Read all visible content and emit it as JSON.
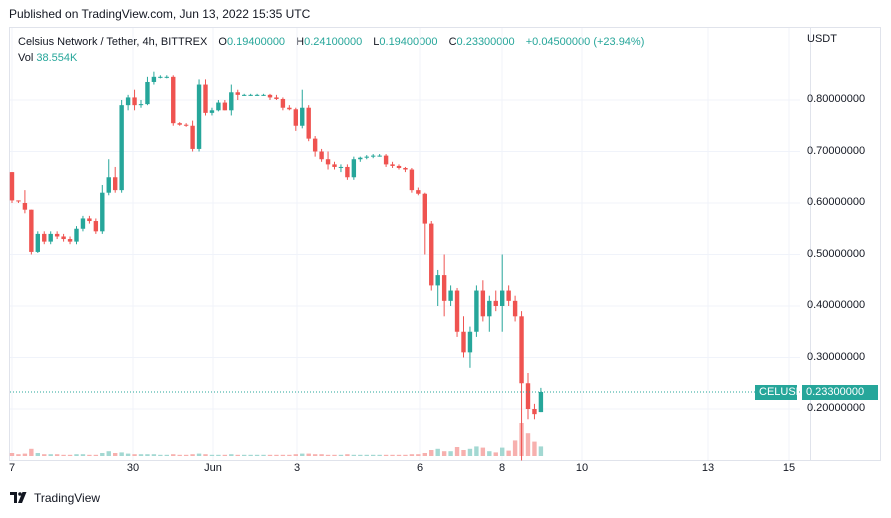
{
  "published": "Published on TradingView.com, Jun 13, 2022 15:35 UTC",
  "header": {
    "symbol": "Celsius Network / Tether, 4h, BITTREX",
    "o_label": "O",
    "o_value": "0.19400000",
    "h_label": "H",
    "h_value": "0.24100000",
    "l_label": "L",
    "l_value": "0.19400000",
    "c_label": "C",
    "c_value": "0.23300000",
    "change": "+0.04500000 (+23.94%)",
    "vol_label": "Vol",
    "vol_value": "38.554K"
  },
  "price_axis": {
    "currency": "USDT",
    "ticks": [
      "0.80000000",
      "0.70000000",
      "0.60000000",
      "0.50000000",
      "0.40000000",
      "0.30000000",
      "0.20000000"
    ],
    "tick_values": [
      0.8,
      0.7,
      0.6,
      0.5,
      0.4,
      0.3,
      0.2
    ]
  },
  "time_axis": {
    "ticks": [
      "7",
      "30",
      "Jun",
      "3",
      "6",
      "8",
      "10",
      "13",
      "15"
    ]
  },
  "current_price": {
    "symbol": "CELUSDT",
    "value": "0.23300000"
  },
  "branding": {
    "logo_text": "TradingView"
  },
  "colors": {
    "up": "#26a69a",
    "down": "#ef5350",
    "up_vol": "#a3d8d2",
    "down_vol": "#f7b0ae",
    "grid": "#f0f3fa"
  },
  "chart_data": {
    "type": "candlestick",
    "interval": "4h",
    "ylim": [
      0.1,
      0.9
    ],
    "candles": [
      {
        "o": 0.66,
        "h": 0.66,
        "l": 0.6,
        "c": 0.605
      },
      {
        "o": 0.605,
        "h": 0.605,
        "l": 0.6,
        "c": 0.603
      },
      {
        "o": 0.6,
        "h": 0.625,
        "l": 0.58,
        "c": 0.587
      },
      {
        "o": 0.587,
        "h": 0.587,
        "l": 0.5,
        "c": 0.505
      },
      {
        "o": 0.505,
        "h": 0.545,
        "l": 0.503,
        "c": 0.54
      },
      {
        "o": 0.54,
        "h": 0.545,
        "l": 0.52,
        "c": 0.525
      },
      {
        "o": 0.525,
        "h": 0.545,
        "l": 0.52,
        "c": 0.54
      },
      {
        "o": 0.54,
        "h": 0.545,
        "l": 0.53,
        "c": 0.535
      },
      {
        "o": 0.535,
        "h": 0.54,
        "l": 0.525,
        "c": 0.53
      },
      {
        "o": 0.53,
        "h": 0.535,
        "l": 0.52,
        "c": 0.525
      },
      {
        "o": 0.525,
        "h": 0.555,
        "l": 0.52,
        "c": 0.55
      },
      {
        "o": 0.55,
        "h": 0.575,
        "l": 0.545,
        "c": 0.57
      },
      {
        "o": 0.57,
        "h": 0.575,
        "l": 0.56,
        "c": 0.565
      },
      {
        "o": 0.565,
        "h": 0.57,
        "l": 0.54,
        "c": 0.545
      },
      {
        "o": 0.545,
        "h": 0.635,
        "l": 0.54,
        "c": 0.62
      },
      {
        "o": 0.62,
        "h": 0.685,
        "l": 0.615,
        "c": 0.65
      },
      {
        "o": 0.65,
        "h": 0.67,
        "l": 0.62,
        "c": 0.625
      },
      {
        "o": 0.625,
        "h": 0.8,
        "l": 0.62,
        "c": 0.79
      },
      {
        "o": 0.79,
        "h": 0.81,
        "l": 0.78,
        "c": 0.805
      },
      {
        "o": 0.805,
        "h": 0.82,
        "l": 0.78,
        "c": 0.79
      },
      {
        "o": 0.79,
        "h": 0.8,
        "l": 0.785,
        "c": 0.792
      },
      {
        "o": 0.792,
        "h": 0.845,
        "l": 0.79,
        "c": 0.835
      },
      {
        "o": 0.835,
        "h": 0.855,
        "l": 0.83,
        "c": 0.845
      },
      {
        "o": 0.845,
        "h": 0.848,
        "l": 0.842,
        "c": 0.845
      },
      {
        "o": 0.845,
        "h": 0.848,
        "l": 0.842,
        "c": 0.845
      },
      {
        "o": 0.845,
        "h": 0.848,
        "l": 0.75,
        "c": 0.755
      },
      {
        "o": 0.755,
        "h": 0.757,
        "l": 0.75,
        "c": 0.752
      },
      {
        "o": 0.752,
        "h": 0.755,
        "l": 0.748,
        "c": 0.75
      },
      {
        "o": 0.75,
        "h": 0.76,
        "l": 0.7,
        "c": 0.705
      },
      {
        "o": 0.705,
        "h": 0.84,
        "l": 0.7,
        "c": 0.83
      },
      {
        "o": 0.83,
        "h": 0.84,
        "l": 0.77,
        "c": 0.775
      },
      {
        "o": 0.775,
        "h": 0.785,
        "l": 0.77,
        "c": 0.78
      },
      {
        "o": 0.78,
        "h": 0.8,
        "l": 0.778,
        "c": 0.795
      },
      {
        "o": 0.795,
        "h": 0.8,
        "l": 0.78,
        "c": 0.78
      },
      {
        "o": 0.78,
        "h": 0.83,
        "l": 0.77,
        "c": 0.815
      },
      {
        "o": 0.815,
        "h": 0.82,
        "l": 0.8,
        "c": 0.81
      },
      {
        "o": 0.81,
        "h": 0.812,
        "l": 0.808,
        "c": 0.81
      },
      {
        "o": 0.81,
        "h": 0.812,
        "l": 0.808,
        "c": 0.81
      },
      {
        "o": 0.81,
        "h": 0.812,
        "l": 0.808,
        "c": 0.81
      },
      {
        "o": 0.81,
        "h": 0.812,
        "l": 0.808,
        "c": 0.81
      },
      {
        "o": 0.81,
        "h": 0.812,
        "l": 0.8,
        "c": 0.805
      },
      {
        "o": 0.805,
        "h": 0.81,
        "l": 0.8,
        "c": 0.802
      },
      {
        "o": 0.802,
        "h": 0.805,
        "l": 0.78,
        "c": 0.785
      },
      {
        "o": 0.785,
        "h": 0.79,
        "l": 0.78,
        "c": 0.782
      },
      {
        "o": 0.782,
        "h": 0.785,
        "l": 0.74,
        "c": 0.75
      },
      {
        "o": 0.75,
        "h": 0.82,
        "l": 0.745,
        "c": 0.785
      },
      {
        "o": 0.785,
        "h": 0.79,
        "l": 0.72,
        "c": 0.725
      },
      {
        "o": 0.725,
        "h": 0.73,
        "l": 0.69,
        "c": 0.7
      },
      {
        "o": 0.7,
        "h": 0.705,
        "l": 0.68,
        "c": 0.685
      },
      {
        "o": 0.685,
        "h": 0.7,
        "l": 0.665,
        "c": 0.675
      },
      {
        "o": 0.675,
        "h": 0.68,
        "l": 0.665,
        "c": 0.67
      },
      {
        "o": 0.67,
        "h": 0.675,
        "l": 0.66,
        "c": 0.67
      },
      {
        "o": 0.67,
        "h": 0.675,
        "l": 0.645,
        "c": 0.65
      },
      {
        "o": 0.65,
        "h": 0.69,
        "l": 0.645,
        "c": 0.685
      },
      {
        "o": 0.685,
        "h": 0.69,
        "l": 0.68,
        "c": 0.688
      },
      {
        "o": 0.688,
        "h": 0.693,
        "l": 0.685,
        "c": 0.69
      },
      {
        "o": 0.69,
        "h": 0.695,
        "l": 0.687,
        "c": 0.692
      },
      {
        "o": 0.692,
        "h": 0.695,
        "l": 0.69,
        "c": 0.692
      },
      {
        "o": 0.692,
        "h": 0.695,
        "l": 0.67,
        "c": 0.675
      },
      {
        "o": 0.675,
        "h": 0.68,
        "l": 0.668,
        "c": 0.672
      },
      {
        "o": 0.672,
        "h": 0.675,
        "l": 0.665,
        "c": 0.668
      },
      {
        "o": 0.668,
        "h": 0.67,
        "l": 0.66,
        "c": 0.665
      },
      {
        "o": 0.665,
        "h": 0.668,
        "l": 0.62,
        "c": 0.625
      },
      {
        "o": 0.625,
        "h": 0.63,
        "l": 0.615,
        "c": 0.618
      },
      {
        "o": 0.618,
        "h": 0.62,
        "l": 0.5,
        "c": 0.56
      },
      {
        "o": 0.56,
        "h": 0.565,
        "l": 0.43,
        "c": 0.44
      },
      {
        "o": 0.44,
        "h": 0.47,
        "l": 0.4,
        "c": 0.46
      },
      {
        "o": 0.46,
        "h": 0.5,
        "l": 0.38,
        "c": 0.41
      },
      {
        "o": 0.41,
        "h": 0.44,
        "l": 0.4,
        "c": 0.43
      },
      {
        "o": 0.43,
        "h": 0.435,
        "l": 0.34,
        "c": 0.35
      },
      {
        "o": 0.35,
        "h": 0.38,
        "l": 0.3,
        "c": 0.31
      },
      {
        "o": 0.31,
        "h": 0.36,
        "l": 0.28,
        "c": 0.35
      },
      {
        "o": 0.35,
        "h": 0.44,
        "l": 0.34,
        "c": 0.43
      },
      {
        "o": 0.43,
        "h": 0.45,
        "l": 0.37,
        "c": 0.38
      },
      {
        "o": 0.38,
        "h": 0.42,
        "l": 0.35,
        "c": 0.41
      },
      {
        "o": 0.41,
        "h": 0.43,
        "l": 0.39,
        "c": 0.4
      },
      {
        "o": 0.4,
        "h": 0.5,
        "l": 0.35,
        "c": 0.43
      },
      {
        "o": 0.43,
        "h": 0.44,
        "l": 0.4,
        "c": 0.41
      },
      {
        "o": 0.41,
        "h": 0.42,
        "l": 0.37,
        "c": 0.38
      },
      {
        "o": 0.38,
        "h": 0.39,
        "l": 0.1,
        "c": 0.25
      },
      {
        "o": 0.25,
        "h": 0.27,
        "l": 0.18,
        "c": 0.2
      },
      {
        "o": 0.2,
        "h": 0.21,
        "l": 0.18,
        "c": 0.19
      },
      {
        "o": 0.194,
        "h": 0.241,
        "l": 0.194,
        "c": 0.233
      }
    ],
    "volume": [
      0.5,
      0.3,
      0.4,
      1.2,
      0.5,
      0.3,
      0.3,
      0.3,
      0.2,
      0.2,
      0.3,
      0.3,
      0.2,
      0.2,
      0.5,
      0.8,
      0.5,
      0.6,
      0.4,
      0.3,
      0.3,
      0.3,
      0.3,
      0.2,
      0.2,
      0.3,
      0.2,
      0.2,
      0.3,
      0.4,
      0.3,
      0.2,
      0.2,
      0.2,
      0.3,
      0.2,
      0.2,
      0.2,
      0.2,
      0.2,
      0.2,
      0.2,
      0.2,
      0.2,
      0.3,
      0.4,
      0.4,
      0.3,
      0.3,
      0.2,
      0.2,
      0.2,
      0.3,
      0.2,
      0.2,
      0.2,
      0.2,
      0.2,
      0.2,
      0.2,
      0.2,
      0.2,
      0.3,
      0.3,
      0.5,
      1.0,
      1.2,
      0.8,
      0.8,
      1.5,
      1.0,
      1.2,
      1.6,
      1.4,
      0.8,
      0.6,
      1.4,
      0.9,
      2.6,
      5.5,
      3.8,
      2.4,
      1.6
    ]
  }
}
